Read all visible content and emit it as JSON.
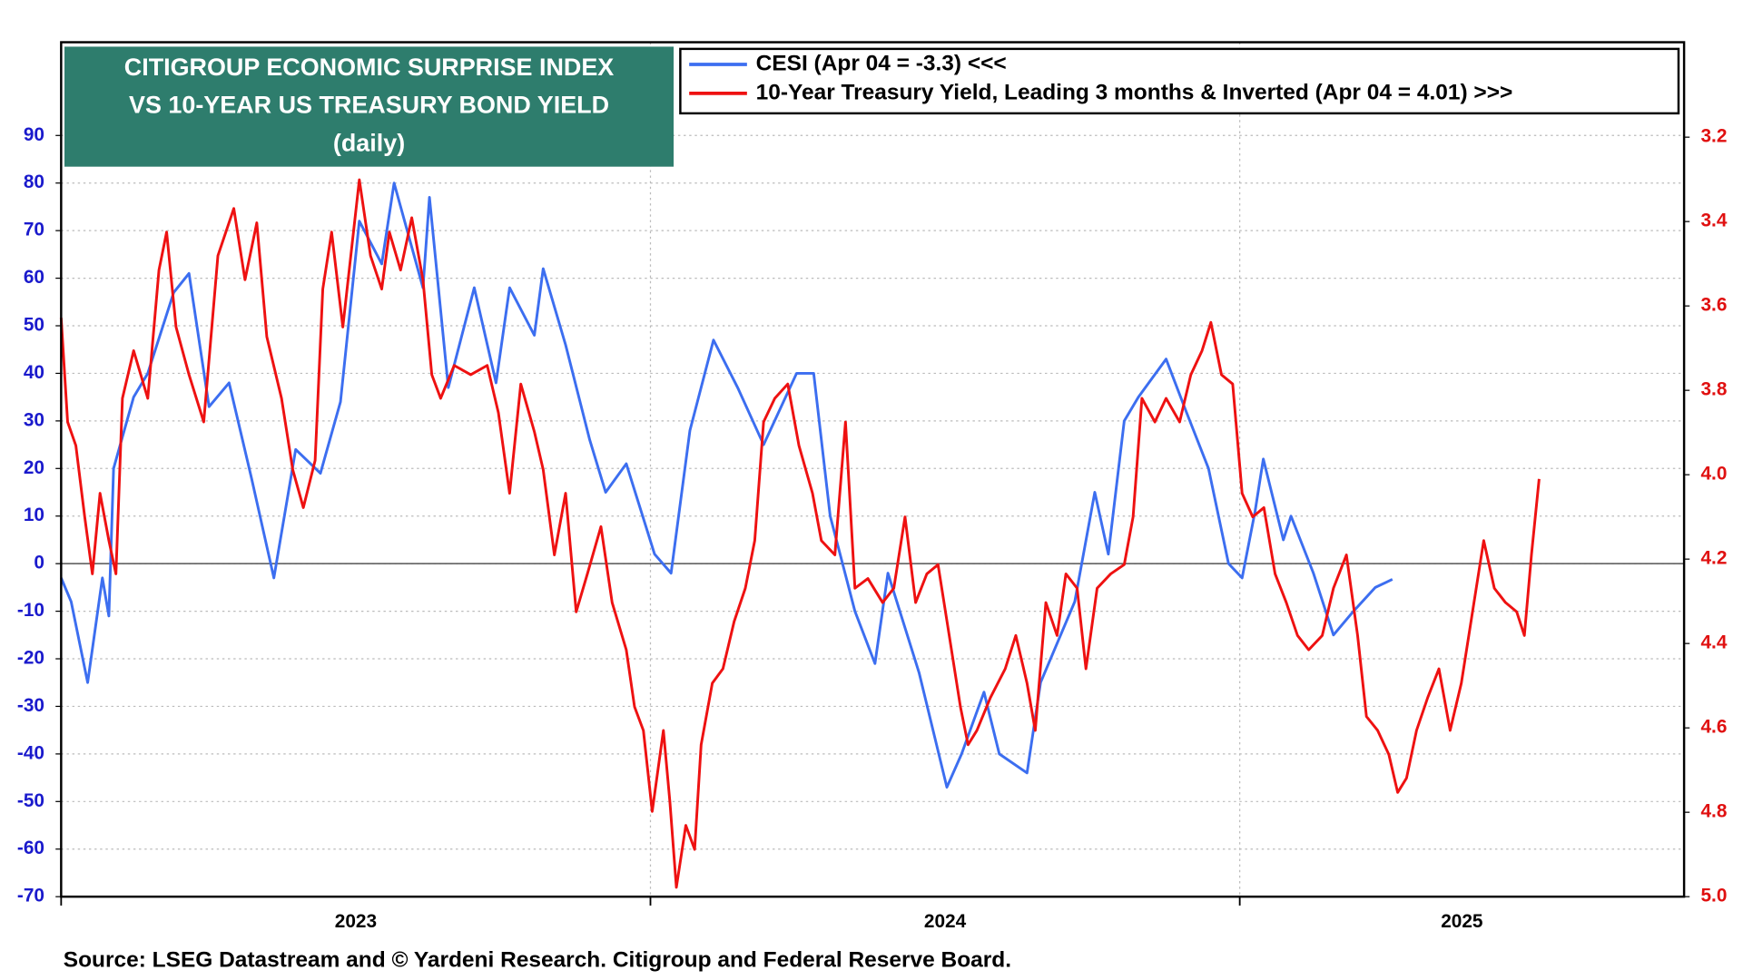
{
  "chart_data": {
    "type": "line",
    "title": [
      "CITIGROUP ECONOMIC SURPRISE INDEX",
      "VS 10-YEAR US TREASURY BOND YIELD"
    ],
    "subtitle": "(daily)",
    "source": "Source: LSEG Datastream and © Yardeni Research. Citigroup and Federal Reserve Board.",
    "xlim": [
      2023,
      2025.754
    ],
    "xticks": [
      {
        "value": 2023,
        "label": "2023"
      },
      {
        "value": 2024,
        "label": "2024"
      },
      {
        "value": 2025,
        "label": "2025"
      }
    ],
    "ylim": [
      -70,
      109.6
    ],
    "yticks": [
      -70,
      -60,
      -50,
      -40,
      -30,
      -20,
      -10,
      0,
      10,
      20,
      30,
      40,
      50,
      60,
      70,
      80,
      90
    ],
    "y2lim": [
      5.0,
      2.975
    ],
    "y2ticks": [
      3.2,
      3.4,
      3.6,
      3.8,
      {
        "value": 4,
        "label": "4.0"
      },
      4.2,
      4.4,
      4.6,
      4.8,
      {
        "value": 5,
        "label": "5.0"
      }
    ],
    "grid": true,
    "zero_line": 0,
    "series": [
      {
        "name": "CESI (Apr 04 = -3.3) <<<",
        "color": "#3c6ef0",
        "x": [
          2023.0,
          2023.017,
          2023.045,
          2023.07,
          2023.081,
          2023.089,
          2023.123,
          2023.147,
          2023.191,
          2023.217,
          2023.251,
          2023.285,
          2023.323,
          2023.361,
          2023.398,
          2023.44,
          2023.474,
          2023.506,
          2023.544,
          2023.565,
          2023.614,
          2023.625,
          2023.657,
          2023.701,
          2023.738,
          2023.761,
          2023.803,
          2023.818,
          2023.856,
          2023.897,
          2023.924,
          2023.959,
          2024.007,
          2024.035,
          2024.067,
          2024.107,
          2024.148,
          2024.192,
          2024.248,
          2024.277,
          2024.305,
          2024.347,
          2024.381,
          2024.403,
          2024.456,
          2024.503,
          2024.528,
          2024.566,
          2024.592,
          2024.639,
          2024.662,
          2024.72,
          2024.754,
          2024.777,
          2024.804,
          2024.828,
          2024.875,
          2024.909,
          2024.947,
          2024.981,
          2025.004,
          2025.026,
          2025.04,
          2025.074,
          2025.087,
          2025.125,
          2025.159,
          2025.193,
          2025.23,
          2025.259
        ],
        "values": [
          -3,
          -8,
          -25,
          -3,
          -11,
          20,
          35,
          40,
          57,
          61,
          33,
          38,
          18,
          -3,
          24,
          19,
          34,
          72,
          63,
          80,
          58,
          77,
          37,
          58,
          38,
          58,
          48,
          62,
          46,
          26,
          15,
          21,
          2,
          -2,
          28,
          47,
          37,
          25,
          40,
          40,
          10,
          -10,
          -21,
          -2,
          -23,
          -47,
          -40,
          -27,
          -40,
          -44,
          -25,
          -8,
          15,
          2,
          30,
          35,
          43,
          32,
          20,
          0,
          -3,
          11,
          22,
          5,
          10,
          -2,
          -15,
          -10,
          -5,
          -3.3
        ]
      },
      {
        "name": "10-Year Treasury Yield, Leading 3 months & Inverted (Apr 04 = 4.01) >>>",
        "color": "#ee1111",
        "axis": "y2",
        "x": [
          2023.0,
          2023.011,
          2023.025,
          2023.04,
          2023.053,
          2023.066,
          2023.081,
          2023.093,
          2023.104,
          2023.123,
          2023.147,
          2023.166,
          2023.179,
          2023.195,
          2023.217,
          2023.242,
          2023.266,
          2023.293,
          2023.312,
          2023.332,
          2023.349,
          2023.374,
          2023.393,
          2023.411,
          2023.431,
          2023.444,
          2023.459,
          2023.478,
          2023.506,
          2023.525,
          2023.544,
          2023.557,
          2023.576,
          2023.595,
          2023.614,
          2023.629,
          2023.644,
          2023.667,
          2023.695,
          2023.723,
          2023.742,
          2023.761,
          2023.78,
          2023.803,
          2023.818,
          2023.837,
          2023.856,
          2023.874,
          2023.893,
          2023.916,
          2023.935,
          2023.959,
          2023.973,
          2023.988,
          2024.003,
          2024.022,
          2024.033,
          2024.044,
          2024.06,
          2024.075,
          2024.086,
          2024.105,
          2024.123,
          2024.142,
          2024.161,
          2024.177,
          2024.192,
          2024.211,
          2024.233,
          2024.252,
          2024.275,
          2024.29,
          2024.313,
          2024.331,
          2024.347,
          2024.369,
          2024.394,
          2024.413,
          2024.432,
          2024.45,
          2024.469,
          2024.488,
          2024.507,
          2024.526,
          2024.539,
          2024.554,
          2024.577,
          2024.602,
          2024.62,
          2024.639,
          2024.653,
          2024.671,
          2024.69,
          2024.705,
          2024.724,
          2024.739,
          2024.758,
          2024.781,
          2024.804,
          2024.819,
          2024.834,
          2024.856,
          2024.875,
          2024.898,
          2024.917,
          2024.936,
          2024.951,
          2024.969,
          2024.988,
          2025.004,
          2025.022,
          2025.041,
          2025.06,
          2025.079,
          2025.098,
          2025.117,
          2025.14,
          2025.159,
          2025.181,
          2025.2,
          2025.215,
          2025.234,
          2025.253,
          2025.268,
          2025.283,
          2025.3,
          2025.319,
          2025.338,
          2025.357,
          2025.376,
          2025.395,
          2025.414,
          2025.432,
          2025.451,
          2025.47,
          2025.483,
          2025.495,
          2025.508
        ],
        "values": [
          3.628,
          3.875,
          3.931,
          4.1,
          4.235,
          4.044,
          4.156,
          4.235,
          3.819,
          3.706,
          3.819,
          3.515,
          3.425,
          3.65,
          3.763,
          3.875,
          3.481,
          3.369,
          3.538,
          3.403,
          3.673,
          3.819,
          3.988,
          4.078,
          3.966,
          3.56,
          3.425,
          3.65,
          3.301,
          3.481,
          3.56,
          3.425,
          3.515,
          3.391,
          3.538,
          3.763,
          3.819,
          3.741,
          3.763,
          3.741,
          3.853,
          4.044,
          3.785,
          3.898,
          3.988,
          4.19,
          4.044,
          4.325,
          4.235,
          4.123,
          4.303,
          4.415,
          4.55,
          4.606,
          4.798,
          4.606,
          4.775,
          4.978,
          4.831,
          4.888,
          4.64,
          4.494,
          4.46,
          4.348,
          4.269,
          4.156,
          3.875,
          3.819,
          3.785,
          3.931,
          4.044,
          4.156,
          4.19,
          3.875,
          4.269,
          4.246,
          4.303,
          4.269,
          4.1,
          4.303,
          4.235,
          4.213,
          4.381,
          4.55,
          4.64,
          4.606,
          4.528,
          4.46,
          4.381,
          4.494,
          4.606,
          4.303,
          4.381,
          4.235,
          4.269,
          4.46,
          4.269,
          4.235,
          4.213,
          4.1,
          3.819,
          3.875,
          3.819,
          3.875,
          3.763,
          3.706,
          3.639,
          3.763,
          3.785,
          4.044,
          4.1,
          4.078,
          4.235,
          4.303,
          4.381,
          4.415,
          4.381,
          4.269,
          4.19,
          4.381,
          4.573,
          4.606,
          4.663,
          4.753,
          4.719,
          4.606,
          4.528,
          4.46,
          4.606,
          4.494,
          4.325,
          4.156,
          4.269,
          4.303,
          4.325,
          4.381,
          4.19,
          4.01
        ]
      }
    ]
  }
}
